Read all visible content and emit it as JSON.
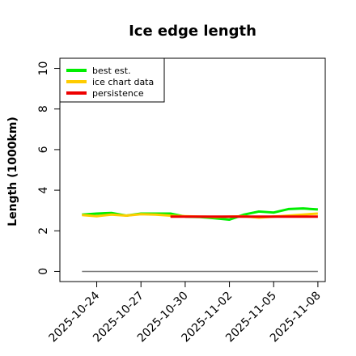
{
  "chart_data": {
    "type": "line",
    "title": "Ice edge length",
    "xlabel": "",
    "ylabel": "Length (1000km)",
    "ylim": [
      -0.5,
      10.5
    ],
    "xlim": [
      "2025-10-21T12:00",
      "2025-11-08T12:00"
    ],
    "yticks": [
      0,
      2,
      4,
      6,
      8,
      10
    ],
    "xticks": [
      "2025-10-24",
      "2025-10-27",
      "2025-10-30",
      "2025-11-02",
      "2025-11-05",
      "2025-11-08"
    ],
    "legend_position": "top-left",
    "grid": false,
    "series": [
      {
        "name": "best est.",
        "color": "#00ee00",
        "x": [
          "2025-10-23",
          "2025-10-24",
          "2025-10-25",
          "2025-10-26",
          "2025-10-27",
          "2025-10-28",
          "2025-10-29",
          "2025-10-30",
          "2025-10-31",
          "2025-11-01",
          "2025-11-02",
          "2025-11-03",
          "2025-11-04",
          "2025-11-05",
          "2025-11-06",
          "2025-11-07",
          "2025-11-08"
        ],
        "y": [
          2.8,
          2.85,
          2.88,
          2.75,
          2.85,
          2.85,
          2.85,
          2.7,
          2.68,
          2.62,
          2.55,
          2.8,
          2.95,
          2.9,
          3.07,
          3.1,
          3.05
        ]
      },
      {
        "name": "ice chart data",
        "color": "#ffcc00",
        "x": [
          "2025-10-23",
          "2025-10-24",
          "2025-10-25",
          "2025-10-26",
          "2025-10-27",
          "2025-10-28",
          "2025-10-29",
          "2025-10-30",
          "2025-10-31",
          "2025-11-01",
          "2025-11-02",
          "2025-11-03",
          "2025-11-04",
          "2025-11-05",
          "2025-11-06",
          "2025-11-07",
          "2025-11-08"
        ],
        "y": [
          2.78,
          2.72,
          2.8,
          2.75,
          2.82,
          2.8,
          2.75,
          2.72,
          2.7,
          2.68,
          2.7,
          2.72,
          2.65,
          2.7,
          2.75,
          2.8,
          2.85
        ]
      },
      {
        "name": "persistence",
        "color": "#ee0000",
        "x": [
          "2025-10-29",
          "2025-11-08"
        ],
        "y": [
          2.7,
          2.7
        ]
      }
    ],
    "reference_lines": [
      {
        "color": "#777777",
        "x": [
          "2025-10-23",
          "2025-11-08"
        ],
        "y": [
          0,
          0
        ]
      }
    ]
  }
}
